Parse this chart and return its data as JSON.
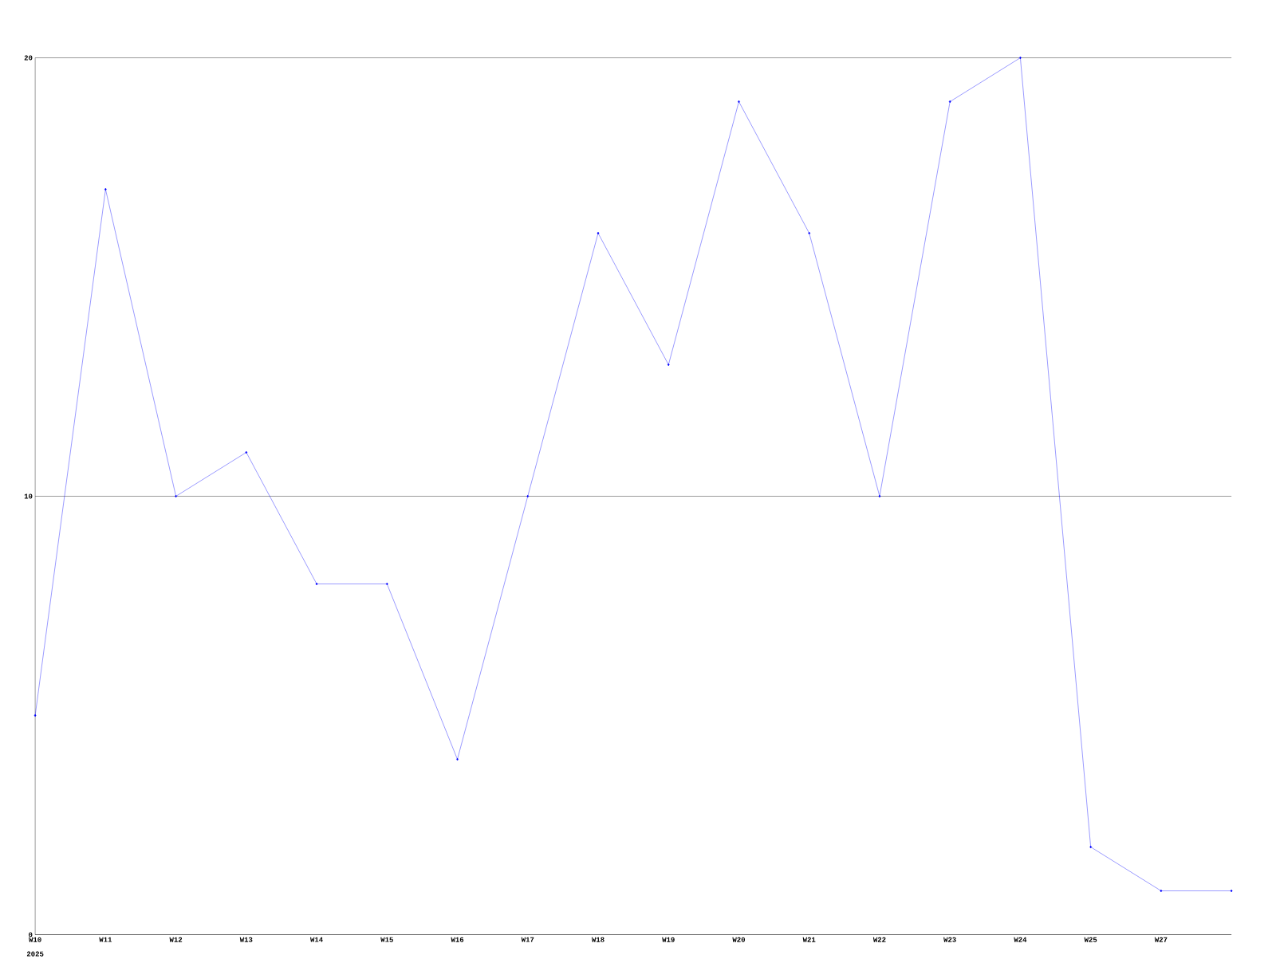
{
  "chart_data": {
    "type": "line",
    "categories": [
      "W10",
      "W11",
      "W12",
      "W13",
      "W14",
      "W15",
      "W16",
      "W17",
      "W18",
      "W19",
      "W20",
      "W21",
      "W22",
      "W23",
      "W24",
      "W25",
      "W27",
      null
    ],
    "values": [
      5,
      17,
      10,
      11,
      8,
      8,
      4,
      10,
      16,
      13,
      19,
      16,
      10,
      19,
      20,
      2,
      1,
      1
    ],
    "color": "#0000ff",
    "ylim": [
      0,
      20
    ],
    "yticks": [
      0,
      10,
      20
    ],
    "grid": "y",
    "marker": "diamond",
    "line_style": "solid",
    "annotations": [
      "2025"
    ]
  }
}
